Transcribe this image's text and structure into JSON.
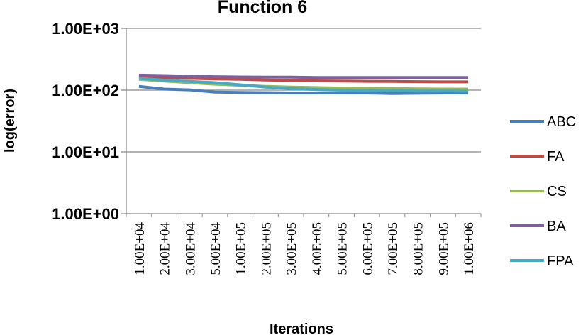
{
  "chart_data": {
    "type": "line",
    "title": "Function 6",
    "xlabel": "Iterations",
    "ylabel": "log(error)",
    "y_scale": "log",
    "ylim": [
      1,
      1000
    ],
    "y_ticks": [
      "1.00E+00",
      "1.00E+01",
      "1.00E+02",
      "1.00E+03"
    ],
    "categories": [
      "1.00E+04",
      "2.00E+04",
      "3.00E+04",
      "5.00E+04",
      "1.00E+05",
      "2.00E+05",
      "3.00E+05",
      "4.00E+05",
      "5.00E+05",
      "6.00E+05",
      "7.00E+05",
      "8.00E+05",
      "9.00E+05",
      "1.00E+06"
    ],
    "grid": true,
    "legend_position": "right",
    "series": [
      {
        "name": "ABC",
        "color": "#4a7ebb",
        "values": [
          115,
          104,
          101,
          93,
          92,
          91,
          90,
          90,
          90,
          90,
          88,
          89,
          90,
          90
        ]
      },
      {
        "name": "FA",
        "color": "#be4b48",
        "values": [
          165,
          160,
          155,
          152,
          150,
          146,
          143,
          141,
          140,
          139,
          138,
          137,
          136,
          136
        ]
      },
      {
        "name": "CS",
        "color": "#98b954",
        "values": [
          150,
          140,
          132,
          125,
          120,
          115,
          112,
          110,
          108,
          107,
          106,
          105,
          104,
          104
        ]
      },
      {
        "name": "BA",
        "color": "#7d60a0",
        "values": [
          175,
          172,
          168,
          165,
          163,
          162,
          162,
          160,
          160,
          160,
          160,
          160,
          160,
          160
        ]
      },
      {
        "name": "FPA",
        "color": "#46aac5",
        "values": [
          155,
          145,
          138,
          132,
          122,
          112,
          106,
          102,
          100,
          99,
          98,
          97,
          97,
          96
        ]
      }
    ]
  }
}
